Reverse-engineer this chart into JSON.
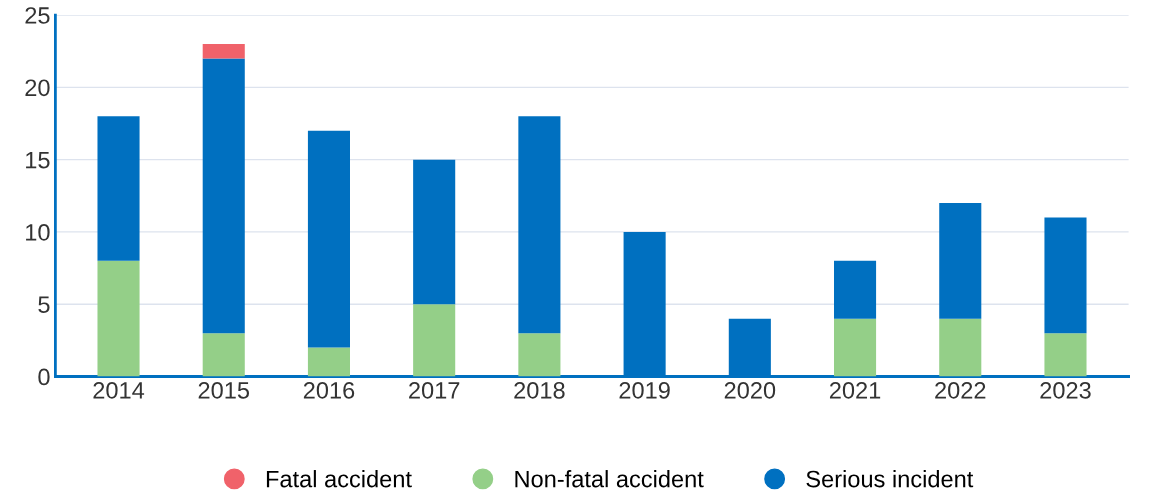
{
  "chart_data": {
    "type": "bar",
    "stacked": true,
    "categories": [
      "2014",
      "2015",
      "2016",
      "2017",
      "2018",
      "2019",
      "2020",
      "2021",
      "2022",
      "2023"
    ],
    "series": [
      {
        "name": "Non-fatal accident",
        "color": "#94cf88",
        "values": [
          8,
          3,
          2,
          5,
          3,
          0,
          0,
          4,
          4,
          3
        ]
      },
      {
        "name": "Serious incident",
        "color": "#0070c0",
        "values": [
          10,
          19,
          15,
          10,
          15,
          10,
          4,
          4,
          8,
          8
        ]
      },
      {
        "name": "Fatal accident",
        "color": "#f0626a",
        "values": [
          0,
          1,
          0,
          0,
          0,
          0,
          0,
          0,
          0,
          0
        ]
      }
    ],
    "ylim": [
      0,
      25
    ],
    "yticks": [
      0,
      5,
      10,
      15,
      20,
      25
    ],
    "grid": "y",
    "legend": "bottom"
  }
}
